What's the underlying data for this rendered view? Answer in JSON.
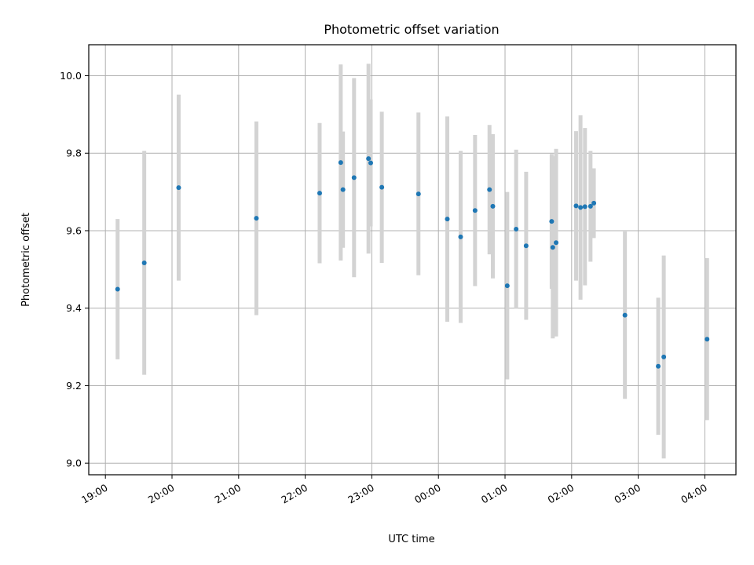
{
  "chart_data": {
    "type": "scatter",
    "title": "Photometric offset variation",
    "xlabel": "UTC time",
    "ylabel": "Photometric offset",
    "xlim": [
      "18:45",
      "04:28"
    ],
    "ylim": [
      8.97,
      10.08
    ],
    "x_ticks": [
      "19:00",
      "20:00",
      "21:00",
      "22:00",
      "23:00",
      "00:00",
      "01:00",
      "02:00",
      "03:00",
      "04:00"
    ],
    "y_ticks": [
      "9.0",
      "9.2",
      "9.4",
      "9.6",
      "9.8",
      "10.0"
    ],
    "grid": true,
    "marker_color": "#1f77b4",
    "errorbar_color": "#d3d3d3",
    "points": [
      {
        "x": "19:11",
        "y": 9.449,
        "err": 0.181
      },
      {
        "x": "19:35",
        "y": 9.517,
        "err": 0.289
      },
      {
        "x": "20:06",
        "y": 9.711,
        "err": 0.24
      },
      {
        "x": "21:16",
        "y": 9.632,
        "err": 0.25
      },
      {
        "x": "22:13",
        "y": 9.697,
        "err": 0.181
      },
      {
        "x": "22:32",
        "y": 9.776,
        "err": 0.253
      },
      {
        "x": "22:34",
        "y": 9.706,
        "err": 0.15
      },
      {
        "x": "22:44",
        "y": 9.737,
        "err": 0.257
      },
      {
        "x": "22:57",
        "y": 9.786,
        "err": 0.245
      },
      {
        "x": "22:59",
        "y": 9.775,
        "err": 0.164
      },
      {
        "x": "23:09",
        "y": 9.712,
        "err": 0.195
      },
      {
        "x": "23:42",
        "y": 9.695,
        "err": 0.21
      },
      {
        "x": "00:08",
        "y": 9.63,
        "err": 0.265
      },
      {
        "x": "00:20",
        "y": 9.584,
        "err": 0.222
      },
      {
        "x": "00:33",
        "y": 9.652,
        "err": 0.195
      },
      {
        "x": "00:46",
        "y": 9.706,
        "err": 0.167
      },
      {
        "x": "00:49",
        "y": 9.663,
        "err": 0.186
      },
      {
        "x": "01:02",
        "y": 9.458,
        "err": 0.242
      },
      {
        "x": "01:10",
        "y": 9.604,
        "err": 0.205
      },
      {
        "x": "01:19",
        "y": 9.561,
        "err": 0.191
      },
      {
        "x": "01:42",
        "y": 9.624,
        "err": 0.174
      },
      {
        "x": "01:43",
        "y": 9.557,
        "err": 0.235
      },
      {
        "x": "01:46",
        "y": 9.569,
        "err": 0.242
      },
      {
        "x": "02:04",
        "y": 9.664,
        "err": 0.193
      },
      {
        "x": "02:08",
        "y": 9.66,
        "err": 0.238
      },
      {
        "x": "02:12",
        "y": 9.662,
        "err": 0.203
      },
      {
        "x": "02:17",
        "y": 9.663,
        "err": 0.143
      },
      {
        "x": "02:20",
        "y": 9.671,
        "err": 0.09
      },
      {
        "x": "02:48",
        "y": 9.382,
        "err": 0.216
      },
      {
        "x": "03:18",
        "y": 9.25,
        "err": 0.177
      },
      {
        "x": "03:23",
        "y": 9.274,
        "err": 0.262
      },
      {
        "x": "04:02",
        "y": 9.32,
        "err": 0.209
      }
    ]
  }
}
